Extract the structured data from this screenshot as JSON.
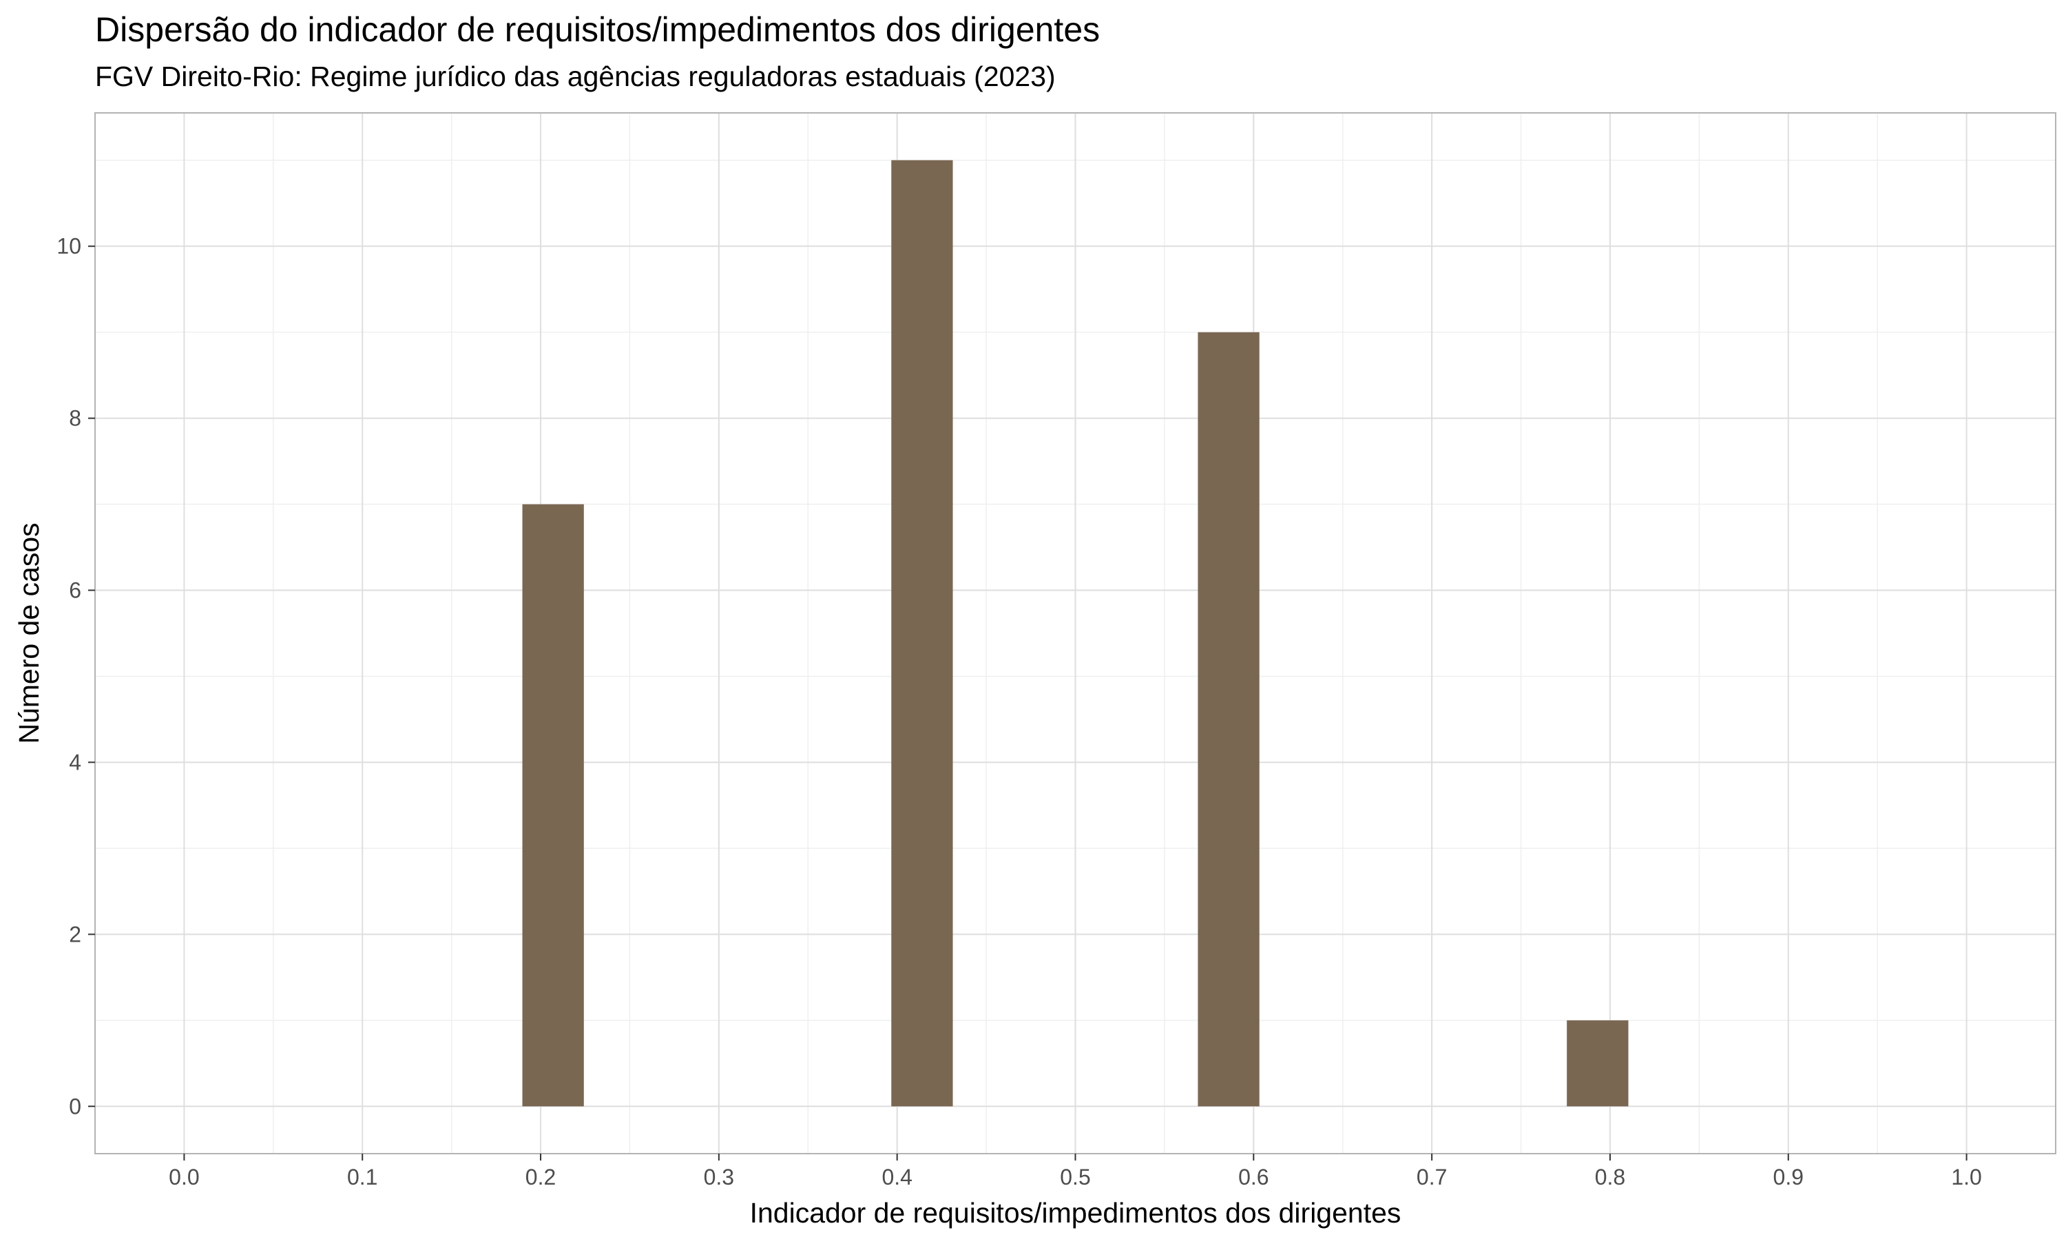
{
  "chart_data": {
    "type": "bar",
    "title": "Dispersão do indicador de requisitos/impedimentos dos dirigentes",
    "subtitle": "FGV Direito-Rio: Regime jurídico das agências reguladoras estaduais (2023)",
    "xlabel": "Indicador de requisitos/impedimentos dos dirigentes",
    "ylabel": "Número de casos",
    "xlim": [
      -0.05,
      1.05
    ],
    "ylim": [
      -0.55,
      11.55
    ],
    "x_ticks": [
      "0.0",
      "0.1",
      "0.2",
      "0.3",
      "0.4",
      "0.5",
      "0.6",
      "0.7",
      "0.8",
      "0.9",
      "1.0"
    ],
    "y_ticks": [
      "0",
      "2",
      "4",
      "6",
      "8",
      "10"
    ],
    "bin_width": 0.0345,
    "bars": [
      {
        "x": 0.207,
        "value": 7
      },
      {
        "x": 0.414,
        "value": 11
      },
      {
        "x": 0.586,
        "value": 9
      },
      {
        "x": 0.793,
        "value": 1
      }
    ],
    "grid": true,
    "colors": {
      "bar": "#7a6752",
      "grid_major": "#dedede",
      "grid_minor": "#efefef",
      "panel_border": "#b3b3b3"
    }
  }
}
